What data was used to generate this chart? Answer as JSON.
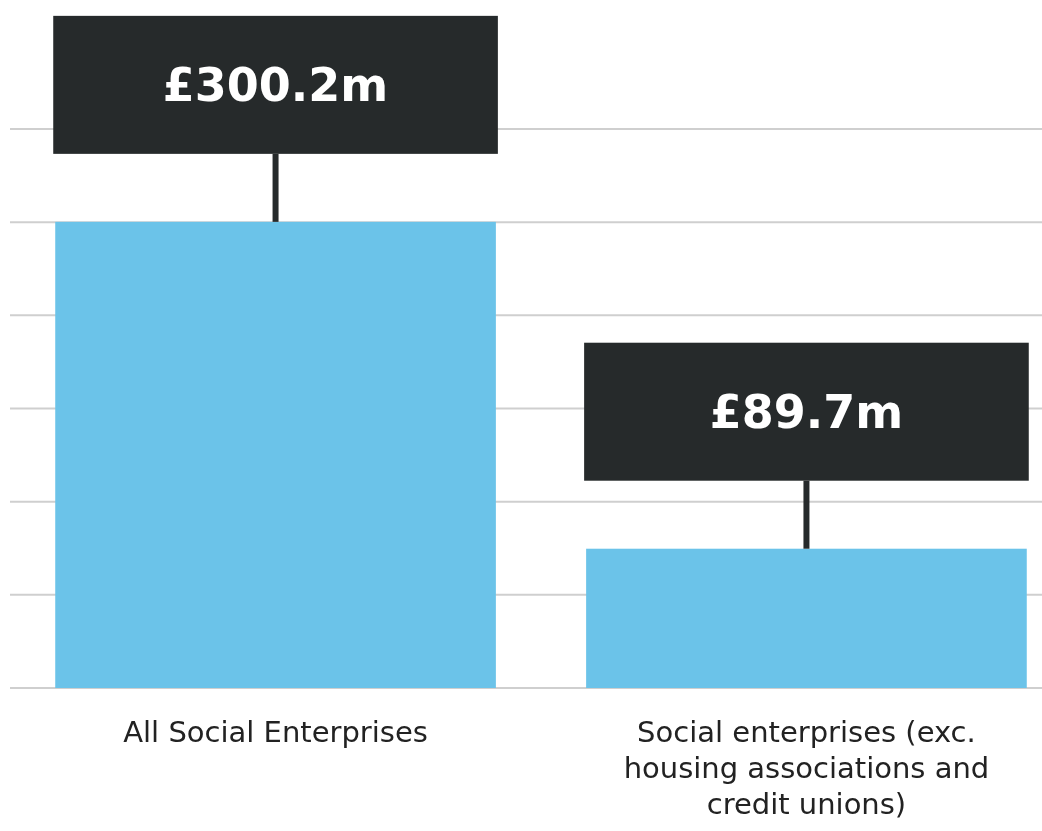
{
  "chart_data": {
    "type": "bar",
    "categories": [
      "All Social Enterprises",
      "Social enterprises (exc. housing associations and credit unions)"
    ],
    "values": [
      300.2,
      89.7
    ],
    "value_labels": [
      "£300.2m",
      "£89.7m"
    ],
    "color": "#6bc3e9",
    "ylim": [
      0,
      360
    ],
    "yticks": [
      {
        "value": 0,
        "label": null
      },
      {
        "value": 60,
        "label": null
      },
      {
        "value": 120,
        "label": null
      },
      {
        "value": 180,
        "label": null
      },
      {
        "value": 240,
        "label": null
      },
      {
        "value": 300,
        "label": null
      },
      {
        "value": 360,
        "label": null
      }
    ],
    "grid": "y",
    "tick_labels": "x"
  }
}
